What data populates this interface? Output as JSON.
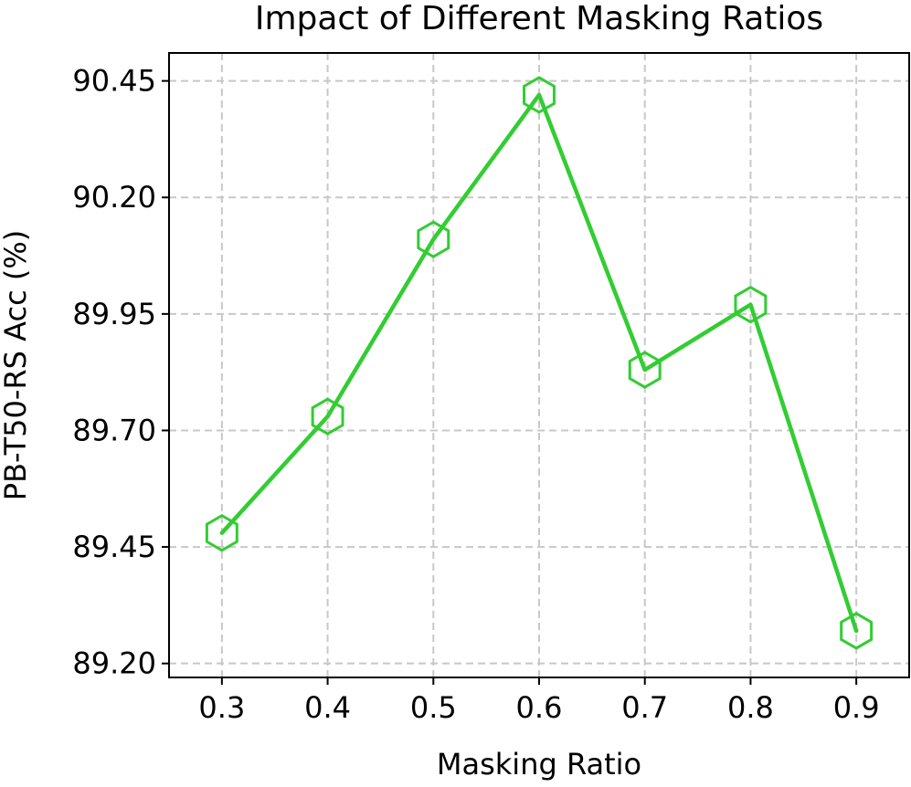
{
  "chart_data": {
    "type": "line",
    "title": "Impact of Different Masking Ratios",
    "xlabel": "Masking Ratio",
    "ylabel": "PB-T50-RS Acc (%)",
    "x": [
      0.3,
      0.4,
      0.5,
      0.6,
      0.7,
      0.8,
      0.9
    ],
    "x_tick_labels": [
      "0.3",
      "0.4",
      "0.5",
      "0.6",
      "0.7",
      "0.8",
      "0.9"
    ],
    "y_ticks": [
      89.2,
      89.45,
      89.7,
      89.95,
      90.2,
      90.45
    ],
    "y_tick_labels": [
      "89.20",
      "89.45",
      "89.70",
      "89.95",
      "90.20",
      "90.45"
    ],
    "ylim": [
      89.17,
      90.51
    ],
    "xlim": [
      0.25,
      0.95
    ],
    "grid": true,
    "series": [
      {
        "name": "PB-T50-RS Acc",
        "color": "#32cd32",
        "marker": "hexagon",
        "values": [
          89.48,
          89.73,
          90.11,
          90.42,
          89.83,
          89.97,
          89.27
        ]
      }
    ]
  }
}
